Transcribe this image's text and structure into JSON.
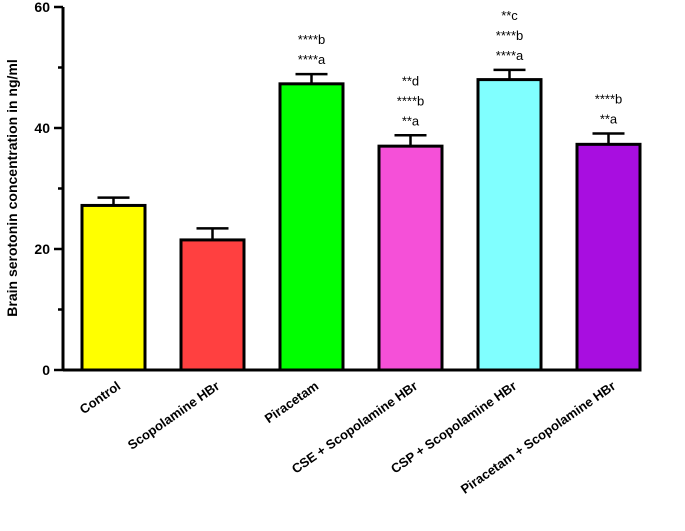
{
  "chart_data": {
    "type": "bar",
    "ylabel": "Brain serotonin concentration in ng/ml",
    "xlabel": "",
    "ylim": [
      0,
      60
    ],
    "yticks": [
      0,
      20,
      40,
      60
    ],
    "grid": false,
    "categories": [
      "Control",
      "Scopolamine HBr",
      "Piracetam",
      "CSE + Scopolamine HBr",
      "CSP + Scopolamine HBr",
      "Piracetam + Scopolamine HBr"
    ],
    "values": [
      27.2,
      21.5,
      47.3,
      37.0,
      48.0,
      37.3
    ],
    "errors": [
      1.3,
      1.9,
      1.6,
      1.8,
      1.6,
      1.8
    ],
    "colors": [
      "#ffff00",
      "#ff4040",
      "#00ff00",
      "#f550d8",
      "#80ffff",
      "#a80ee0"
    ],
    "annotations": [
      [],
      [],
      [
        "****b",
        "****a"
      ],
      [
        "**d",
        "****b",
        "**a"
      ],
      [
        "**c",
        "****b",
        "****a"
      ],
      [
        "****b",
        "**a"
      ]
    ]
  }
}
